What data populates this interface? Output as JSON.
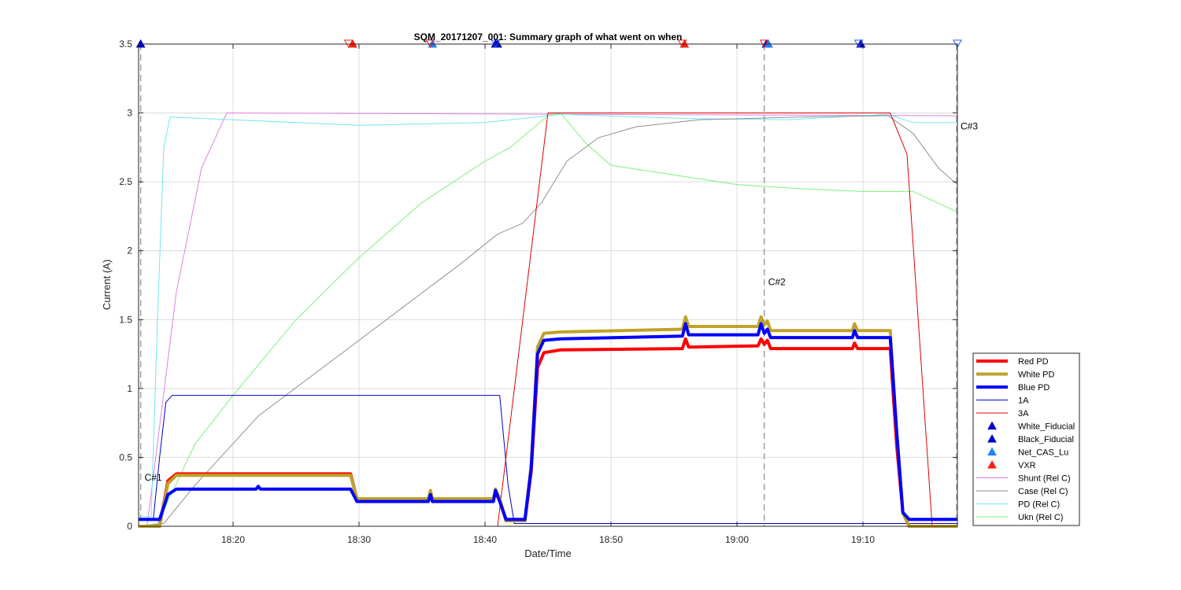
{
  "chart_data": {
    "type": "line",
    "title": "SQM_20171207_001: Summary graph of what went on when",
    "xlabel": "Date/Time",
    "ylabel": "Current (A)",
    "xlim": [
      "18:12:30",
      "19:17:30"
    ],
    "ylim": [
      0,
      3.5
    ],
    "grid": true,
    "legend_position": "bottom-right",
    "x_ticks": [
      "18:20",
      "18:30",
      "18:40",
      "18:50",
      "19:00",
      "19:10"
    ],
    "y_ticks": [
      "0",
      "0.5",
      "1",
      "1.5",
      "2",
      "2.5",
      "3",
      "3.5"
    ],
    "annotations": [
      {
        "label": "C#1",
        "x": "18:12:40",
        "y": 0.33
      },
      {
        "label": "C#2",
        "x": "19:02:10",
        "y": 1.75
      },
      {
        "label": "C#3",
        "x": "19:17:30",
        "y": 2.88
      }
    ],
    "vlines": [
      "18:12:40",
      "19:02:10",
      "19:17:30"
    ],
    "series": [
      {
        "name": "Red PD",
        "color": "#ff0000",
        "width": 4,
        "points": [
          [
            "18:12:30",
            0.0
          ],
          [
            "18:14:10",
            0.0
          ],
          [
            "18:14:50",
            0.33
          ],
          [
            "18:15:30",
            0.38
          ],
          [
            "18:29:20",
            0.38
          ],
          [
            "18:29:50",
            0.2
          ],
          [
            "18:35:30",
            0.2
          ],
          [
            "18:35:40",
            0.24
          ],
          [
            "18:35:50",
            0.2
          ],
          [
            "18:40:40",
            0.2
          ],
          [
            "18:40:50",
            0.24
          ],
          [
            "18:41:10",
            0.19
          ],
          [
            "18:41:40",
            0.04
          ],
          [
            "18:43:10",
            0.04
          ],
          [
            "18:43:40",
            0.4
          ],
          [
            "18:44:10",
            1.15
          ],
          [
            "18:44:40",
            1.26
          ],
          [
            "18:46:00",
            1.28
          ],
          [
            "18:55:40",
            1.29
          ],
          [
            "18:55:55",
            1.36
          ],
          [
            "18:56:10",
            1.3
          ],
          [
            "19:01:40",
            1.31
          ],
          [
            "19:01:55",
            1.36
          ],
          [
            "19:02:10",
            1.32
          ],
          [
            "19:02:25",
            1.35
          ],
          [
            "19:02:40",
            1.29
          ],
          [
            "19:09:10",
            1.29
          ],
          [
            "19:09:20",
            1.33
          ],
          [
            "19:09:35",
            1.29
          ],
          [
            "19:12:10",
            1.29
          ],
          [
            "19:12:40",
            0.6
          ],
          [
            "19:13:10",
            0.1
          ],
          [
            "19:13:40",
            0.0
          ],
          [
            "19:17:30",
            0.0
          ]
        ]
      },
      {
        "name": "White PD",
        "color": "#bfa22b",
        "width": 4,
        "points": [
          [
            "18:12:30",
            0.0
          ],
          [
            "18:14:10",
            0.0
          ],
          [
            "18:14:50",
            0.31
          ],
          [
            "18:15:30",
            0.37
          ],
          [
            "18:29:20",
            0.37
          ],
          [
            "18:29:50",
            0.2
          ],
          [
            "18:35:30",
            0.2
          ],
          [
            "18:35:40",
            0.26
          ],
          [
            "18:35:50",
            0.2
          ],
          [
            "18:40:40",
            0.2
          ],
          [
            "18:40:50",
            0.27
          ],
          [
            "18:41:10",
            0.2
          ],
          [
            "18:41:40",
            0.04
          ],
          [
            "18:43:10",
            0.04
          ],
          [
            "18:43:40",
            0.45
          ],
          [
            "18:44:10",
            1.3
          ],
          [
            "18:44:40",
            1.4
          ],
          [
            "18:46:00",
            1.41
          ],
          [
            "18:55:40",
            1.43
          ],
          [
            "18:55:55",
            1.52
          ],
          [
            "18:56:10",
            1.45
          ],
          [
            "19:01:40",
            1.45
          ],
          [
            "19:01:55",
            1.52
          ],
          [
            "19:02:10",
            1.46
          ],
          [
            "19:02:25",
            1.49
          ],
          [
            "19:02:40",
            1.42
          ],
          [
            "19:09:10",
            1.42
          ],
          [
            "19:09:20",
            1.47
          ],
          [
            "19:09:35",
            1.42
          ],
          [
            "19:12:10",
            1.42
          ],
          [
            "19:12:40",
            0.7
          ],
          [
            "19:13:10",
            0.1
          ],
          [
            "19:13:40",
            0.0
          ],
          [
            "19:17:30",
            0.0
          ]
        ]
      },
      {
        "name": "Blue PD",
        "color": "#0000ff",
        "width": 4,
        "points": [
          [
            "18:12:30",
            0.05
          ],
          [
            "18:14:10",
            0.05
          ],
          [
            "18:14:50",
            0.23
          ],
          [
            "18:15:30",
            0.27
          ],
          [
            "18:21:50",
            0.27
          ],
          [
            "18:22:00",
            0.29
          ],
          [
            "18:22:10",
            0.27
          ],
          [
            "18:29:20",
            0.27
          ],
          [
            "18:29:50",
            0.18
          ],
          [
            "18:35:30",
            0.18
          ],
          [
            "18:35:40",
            0.23
          ],
          [
            "18:35:50",
            0.18
          ],
          [
            "18:40:40",
            0.18
          ],
          [
            "18:40:50",
            0.26
          ],
          [
            "18:41:10",
            0.18
          ],
          [
            "18:41:40",
            0.05
          ],
          [
            "18:43:10",
            0.05
          ],
          [
            "18:43:40",
            0.42
          ],
          [
            "18:44:10",
            1.25
          ],
          [
            "18:44:40",
            1.35
          ],
          [
            "18:46:00",
            1.36
          ],
          [
            "18:55:40",
            1.38
          ],
          [
            "18:55:55",
            1.47
          ],
          [
            "18:56:10",
            1.39
          ],
          [
            "19:01:40",
            1.39
          ],
          [
            "19:01:55",
            1.47
          ],
          [
            "19:02:10",
            1.4
          ],
          [
            "19:02:25",
            1.43
          ],
          [
            "19:02:40",
            1.37
          ],
          [
            "19:09:10",
            1.37
          ],
          [
            "19:09:20",
            1.42
          ],
          [
            "19:09:35",
            1.37
          ],
          [
            "19:12:10",
            1.37
          ],
          [
            "19:12:40",
            0.7
          ],
          [
            "19:13:10",
            0.1
          ],
          [
            "19:13:40",
            0.05
          ],
          [
            "19:17:30",
            0.05
          ]
        ]
      },
      {
        "name": "1A",
        "color": "#0000cc",
        "width": 1,
        "points": [
          [
            "18:12:30",
            0.05
          ],
          [
            "18:13:40",
            0.05
          ],
          [
            "18:14:10",
            0.5
          ],
          [
            "18:14:40",
            0.9
          ],
          [
            "18:15:10",
            0.95
          ],
          [
            "18:41:10",
            0.95
          ],
          [
            "18:41:50",
            0.3
          ],
          [
            "18:42:20",
            0.02
          ],
          [
            "19:17:30",
            0.02
          ]
        ]
      },
      {
        "name": "3A",
        "color": "#e00000",
        "width": 1,
        "points": [
          [
            "18:12:30",
            0.0
          ],
          [
            "18:41:00",
            0.0
          ],
          [
            "18:45:00",
            3.0
          ],
          [
            "19:12:10",
            3.0
          ],
          [
            "19:13:30",
            2.7
          ],
          [
            "19:15:30",
            0.0
          ],
          [
            "19:17:30",
            0.0
          ]
        ]
      },
      {
        "name": "Shunt (Rel C)",
        "color": "#e080e0",
        "width": 1,
        "points": [
          [
            "18:12:30",
            0.0
          ],
          [
            "18:13:10",
            0.0
          ],
          [
            "18:14:00",
            0.6
          ],
          [
            "18:15:30",
            1.7
          ],
          [
            "18:17:30",
            2.6
          ],
          [
            "18:19:30",
            3.0
          ],
          [
            "19:17:30",
            2.98
          ]
        ]
      },
      {
        "name": "Case (Rel C)",
        "color": "#909090",
        "width": 1,
        "points": [
          [
            "18:12:30",
            0.0
          ],
          [
            "18:14:30",
            0.02
          ],
          [
            "18:17:00",
            0.3
          ],
          [
            "18:22:00",
            0.8
          ],
          [
            "18:30:00",
            1.35
          ],
          [
            "18:38:00",
            1.9
          ],
          [
            "18:41:00",
            2.12
          ],
          [
            "18:43:00",
            2.2
          ],
          [
            "18:44:30",
            2.35
          ],
          [
            "18:46:30",
            2.65
          ],
          [
            "18:49:00",
            2.82
          ],
          [
            "18:52:00",
            2.9
          ],
          [
            "18:57:00",
            2.95
          ],
          [
            "19:05:00",
            2.97
          ],
          [
            "19:12:00",
            2.98
          ],
          [
            "19:14:00",
            2.85
          ],
          [
            "19:16:00",
            2.6
          ],
          [
            "19:17:30",
            2.48
          ]
        ]
      },
      {
        "name": "PD (Rel C)",
        "color": "#70e8f0",
        "width": 1,
        "points": [
          [
            "18:12:30",
            0.07
          ],
          [
            "18:13:30",
            0.07
          ],
          [
            "18:14:00",
            1.5
          ],
          [
            "18:14:30",
            2.75
          ],
          [
            "18:15:00",
            2.97
          ],
          [
            "18:20:00",
            2.95
          ],
          [
            "18:30:00",
            2.91
          ],
          [
            "18:40:00",
            2.93
          ],
          [
            "18:46:00",
            2.99
          ],
          [
            "18:56:00",
            2.96
          ],
          [
            "19:04:00",
            2.95
          ],
          [
            "19:12:00",
            2.99
          ],
          [
            "19:14:00",
            2.93
          ],
          [
            "19:17:30",
            2.93
          ]
        ]
      },
      {
        "name": "Ukn (Rel C)",
        "color": "#80f080",
        "width": 1,
        "points": [
          [
            "18:12:30",
            0.0
          ],
          [
            "18:14:00",
            0.02
          ],
          [
            "18:17:00",
            0.6
          ],
          [
            "18:20:00",
            0.95
          ],
          [
            "18:25:00",
            1.5
          ],
          [
            "18:30:00",
            1.95
          ],
          [
            "18:35:00",
            2.35
          ],
          [
            "18:40:00",
            2.65
          ],
          [
            "18:42:00",
            2.75
          ],
          [
            "18:45:00",
            2.98
          ],
          [
            "18:46:00",
            3.0
          ],
          [
            "18:48:00",
            2.78
          ],
          [
            "18:50:00",
            2.62
          ],
          [
            "18:55:00",
            2.55
          ],
          [
            "19:00:00",
            2.48
          ],
          [
            "19:05:00",
            2.45
          ],
          [
            "19:10:00",
            2.43
          ],
          [
            "19:14:00",
            2.43
          ],
          [
            "19:17:30",
            2.28
          ]
        ]
      }
    ],
    "markers": [
      {
        "name": "White_Fiducial",
        "shape": "triangle-up",
        "color": "#0000cc",
        "x": [
          "18:12:40",
          "18:41:00",
          "19:02:20",
          "19:09:50"
        ]
      },
      {
        "name": "Black_Fiducial",
        "shape": "triangle-up",
        "color": "#0000cc",
        "x": [
          "18:12:40",
          "18:40:50",
          "19:09:50"
        ]
      },
      {
        "name": "Net_CAS_Lu",
        "shape": "triangle-up",
        "color": "#2080ff",
        "x": [
          "18:35:50",
          "19:02:30"
        ]
      },
      {
        "name": "VXR",
        "shape": "triangle-up",
        "color": "#ff2010",
        "x": [
          "18:29:30",
          "18:55:50"
        ]
      },
      {
        "name": "",
        "shape": "triangle-down-open",
        "color": "#ff2010",
        "x": [
          "18:29:10",
          "18:35:40",
          "18:55:40",
          "19:02:10"
        ]
      },
      {
        "name": "",
        "shape": "triangle-down-open",
        "color": "#2060ff",
        "x": [
          "18:40:50",
          "19:09:40",
          "19:17:30"
        ]
      }
    ]
  }
}
